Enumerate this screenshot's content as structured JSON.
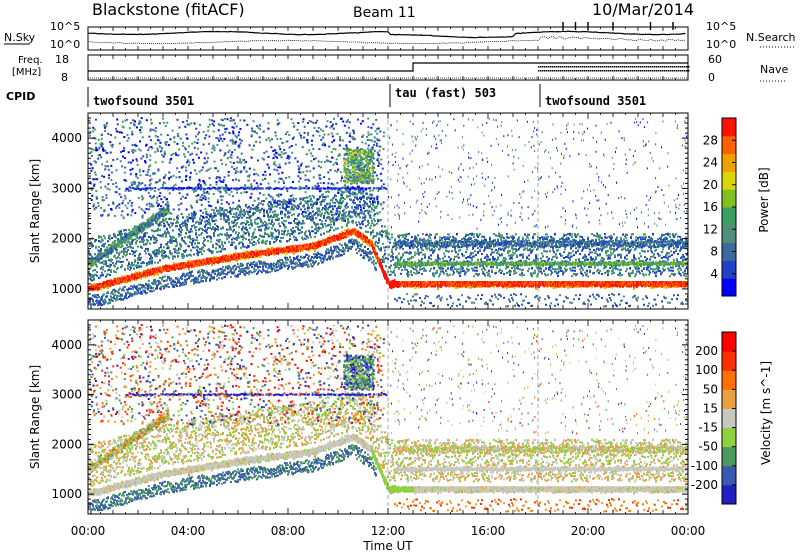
{
  "header": {
    "station": "Blackstone (fitACF)",
    "beam": "Beam 11",
    "date": "10/Mar/2014"
  },
  "nsky_panel": {
    "left_label": "N.Sky",
    "right_label": "N.Search",
    "left_ticks": [
      "10^5",
      "10^0"
    ],
    "right_ticks": [
      "10^5",
      "10^0"
    ]
  },
  "freq_panel": {
    "left_label_line1": "Freq.",
    "left_label_line2": "[MHz]",
    "left_ticks": [
      "18",
      "8"
    ],
    "right_label": "Nave",
    "right_ticks": [
      "60",
      "0"
    ]
  },
  "cpid_panel": {
    "label": "CPID",
    "segments": [
      {
        "name": "twofsound 3501",
        "start_hour": 0
      },
      {
        "name": "tau (fast) 503",
        "start_hour": 12
      },
      {
        "name": "twofsound 3501",
        "start_hour": 18
      }
    ]
  },
  "x_axis": {
    "label": "Time UT",
    "range_hours": [
      0,
      24
    ],
    "tick_labels": [
      "00:00",
      "04:00",
      "08:00",
      "12:00",
      "16:00",
      "20:00",
      "00:00"
    ]
  },
  "chart_data": [
    {
      "type": "heatmap",
      "panel": "power",
      "ylabel": "Slant Range [km]",
      "xlabel": "Time UT",
      "ylim": [
        600,
        4500
      ],
      "xlim_hours": [
        0,
        24
      ],
      "y_tick_labels": [
        "1000",
        "2000",
        "3000",
        "4000"
      ],
      "y_ticks": [
        1000,
        2000,
        3000,
        4000
      ],
      "colorbar": {
        "label": "Power [dB]",
        "range": [
          0,
          32
        ],
        "tick_labels": [
          "28",
          "24",
          "20",
          "16",
          "12",
          "8",
          "4"
        ],
        "ticks": [
          28,
          24,
          20,
          16,
          12,
          8,
          4
        ],
        "colors": [
          "#0000ff",
          "#2040c8",
          "#3a6aa0",
          "#4f8f7a",
          "#3aa060",
          "#80c020",
          "#d8d800",
          "#f0a000",
          "#ff6000",
          "#ff1000"
        ]
      },
      "main_echo_band_km": [
        {
          "hour": 0,
          "range": 1000
        },
        {
          "hour": 3,
          "range": 1400
        },
        {
          "hour": 6,
          "range": 1650
        },
        {
          "hour": 9,
          "range": 1850
        },
        {
          "hour": 10.6,
          "range": 2150
        },
        {
          "hour": 11.3,
          "range": 1900
        },
        {
          "hour": 12,
          "range": 1100
        },
        {
          "hour": 14,
          "range": 1100
        },
        {
          "hour": 18,
          "range": 1100
        },
        {
          "hour": 24,
          "range": 1100
        }
      ],
      "mode_change_hours": [
        12,
        18
      ]
    },
    {
      "type": "heatmap",
      "panel": "velocity",
      "ylabel": "Slant Range [km]",
      "xlabel": "Time UT",
      "ylim": [
        600,
        4500
      ],
      "xlim_hours": [
        0,
        24
      ],
      "y_tick_labels": [
        "1000",
        "2000",
        "3000",
        "4000"
      ],
      "y_ticks": [
        1000,
        2000,
        3000,
        4000
      ],
      "colorbar": {
        "label": "Velocity [m s^-1]",
        "tick_labels": [
          "200",
          "100",
          "50",
          "15",
          "-15",
          "-50",
          "-100",
          "-200"
        ],
        "ticks": [
          200,
          100,
          50,
          15,
          -15,
          -50,
          -100,
          -200
        ],
        "colors": [
          "#2020c0",
          "#3a5ab0",
          "#4a9a60",
          "#90d040",
          "#c8c8c0",
          "#e8a040",
          "#ff7000",
          "#ff3000",
          "#ff0000"
        ]
      },
      "mode_change_hours": [
        12,
        18
      ]
    }
  ]
}
